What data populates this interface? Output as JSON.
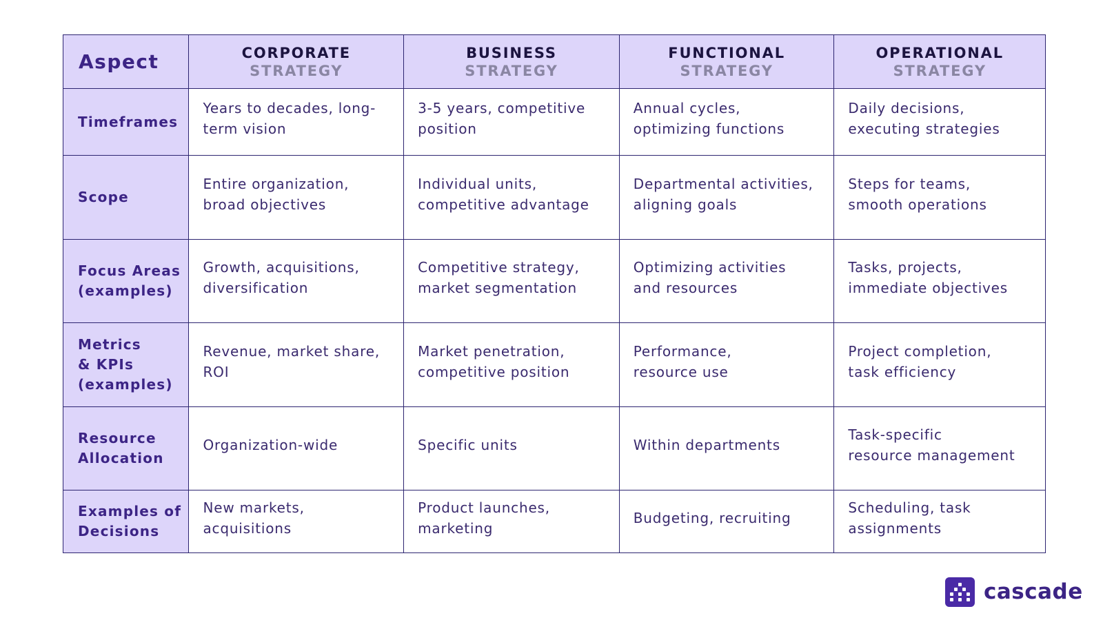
{
  "table": {
    "corner": "Aspect",
    "columns": [
      {
        "top": "CORPORATE",
        "sub": "STRATEGY"
      },
      {
        "top": "BUSINESS",
        "sub": "STRATEGY"
      },
      {
        "top": "FUNCTIONAL",
        "sub": "STRATEGY"
      },
      {
        "top": "OPERATIONAL",
        "sub": "STRATEGY"
      }
    ],
    "rows": [
      {
        "label_lines": [
          "Timeframes"
        ],
        "cells": [
          [
            "Years to decades, long-",
            "term vision"
          ],
          [
            "3-5 years, competitive",
            "position"
          ],
          [
            "Annual cycles,",
            "optimizing functions"
          ],
          [
            "Daily decisions,",
            "executing strategies"
          ]
        ]
      },
      {
        "label_lines": [
          "Scope"
        ],
        "cells": [
          [
            "Entire organization,",
            "broad objectives"
          ],
          [
            "Individual units,",
            "competitive advantage"
          ],
          [
            "Departmental activities,",
            "aligning goals"
          ],
          [
            "Steps for teams,",
            "smooth operations"
          ]
        ]
      },
      {
        "label_lines": [
          "Focus Areas",
          "(examples)"
        ],
        "cells": [
          [
            "Growth, acquisitions,",
            "diversification"
          ],
          [
            "Competitive strategy,",
            "market segmentation"
          ],
          [
            "Optimizing activities",
            "and resources"
          ],
          [
            "Tasks, projects,",
            "immediate objectives"
          ]
        ]
      },
      {
        "label_lines": [
          "Metrics",
          "& KPIs",
          "(examples)"
        ],
        "cells": [
          [
            "Revenue, market share,",
            "ROI"
          ],
          [
            "Market penetration,",
            "competitive position"
          ],
          [
            "Performance,",
            "resource use"
          ],
          [
            "Project completion,",
            "task efficiency"
          ]
        ]
      },
      {
        "label_lines": [
          "Resource",
          "Allocation"
        ],
        "cells": [
          [
            "Organization-wide"
          ],
          [
            "Specific units"
          ],
          [
            "Within departments"
          ],
          [
            "Task-specific",
            "resource management"
          ]
        ]
      },
      {
        "label_lines": [
          "Examples of",
          "Decisions"
        ],
        "cells": [
          [
            "New markets,",
            "acquisitions"
          ],
          [
            "Product launches,",
            "marketing"
          ],
          [
            "Budgeting, recruiting"
          ],
          [
            "Scheduling, task",
            "assignments"
          ]
        ]
      }
    ]
  },
  "brand": {
    "name": "cascade",
    "icon": "cascade-logo-icon",
    "accent_color": "#4a2aa6",
    "header_color": "#ddd5fa",
    "border_color": "#2c2470"
  }
}
